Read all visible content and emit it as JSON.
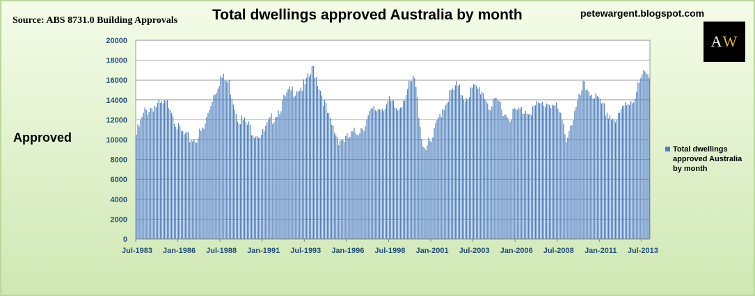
{
  "header": {
    "source": "Source: ABS 8731.0 Building Approvals",
    "title": "Total dwellings approved Australia by month",
    "blog": "petewargent.blogspot.com",
    "logo_a": "A",
    "logo_w": "W"
  },
  "colors": {
    "bar": "#4f81bd",
    "plot_bg": "#ffffff",
    "grid": "#8c8c8c",
    "axis_text": "#1f4e79"
  },
  "chart_data": {
    "type": "bar",
    "title": "Total dwellings approved Australia by month",
    "xlabel": "",
    "ylabel": "Approved",
    "ylim": [
      0,
      20000
    ],
    "yticks": [
      0,
      2000,
      4000,
      6000,
      8000,
      10000,
      12000,
      14000,
      16000,
      18000,
      20000
    ],
    "xtick_labels": [
      "Jul-1983",
      "Jan-1986",
      "Jul-1988",
      "Jan-1991",
      "Jul-1993",
      "Jan-1996",
      "Jul-1998",
      "Jan-2001",
      "Jul-2003",
      "Jan-2006",
      "Jul-2008",
      "Jan-2011",
      "Jul-2013"
    ],
    "x_start": "Jul-1983",
    "x_end": "Dec-2013",
    "legend": "Total dwellings approved Australia by month",
    "legend_position": "right",
    "grid": true,
    "series": [
      {
        "name": "Total dwellings approved Australia by month",
        "anchors": [
          [
            "Jul-1983",
            10500
          ],
          [
            "Jan-1984",
            12800
          ],
          [
            "Jul-1984",
            13400
          ],
          [
            "Jan-1985",
            13400
          ],
          [
            "Jul-1985",
            13600
          ],
          [
            "Jan-1986",
            11000
          ],
          [
            "Jul-1986",
            10100
          ],
          [
            "Jan-1987",
            10100
          ],
          [
            "Jul-1987",
            11000
          ],
          [
            "Jan-1988",
            14200
          ],
          [
            "Jul-1988",
            16300
          ],
          [
            "Jan-1989",
            15600
          ],
          [
            "Jul-1989",
            12400
          ],
          [
            "Jan-1990",
            11600
          ],
          [
            "Jul-1990",
            10800
          ],
          [
            "Jan-1991",
            10500
          ],
          [
            "Jul-1991",
            12000
          ],
          [
            "Jan-1992",
            13200
          ],
          [
            "Jul-1992",
            14600
          ],
          [
            "Jan-1993",
            15200
          ],
          [
            "Jul-1993",
            15400
          ],
          [
            "Jan-1994",
            17200
          ],
          [
            "Jul-1994",
            14600
          ],
          [
            "Jan-1995",
            11600
          ],
          [
            "Jul-1995",
            10100
          ],
          [
            "Jan-1996",
            10000
          ],
          [
            "Jul-1996",
            10700
          ],
          [
            "Jan-1997",
            11500
          ],
          [
            "Jul-1997",
            12800
          ],
          [
            "Jan-1998",
            13300
          ],
          [
            "Jul-1998",
            13700
          ],
          [
            "Jan-1999",
            13000
          ],
          [
            "Jul-1999",
            14800
          ],
          [
            "Jan-2000",
            16100
          ],
          [
            "Jul-2000",
            9400
          ],
          [
            "Jan-2001",
            9600
          ],
          [
            "Jul-2001",
            12600
          ],
          [
            "Jan-2002",
            14300
          ],
          [
            "Jul-2002",
            15300
          ],
          [
            "Jan-2003",
            14300
          ],
          [
            "Jul-2003",
            15100
          ],
          [
            "Jan-2004",
            15000
          ],
          [
            "Jul-2004",
            13200
          ],
          [
            "Jan-2005",
            13800
          ],
          [
            "Jul-2005",
            12300
          ],
          [
            "Jan-2006",
            12800
          ],
          [
            "Jul-2006",
            13000
          ],
          [
            "Jan-2007",
            13100
          ],
          [
            "Jul-2007",
            13500
          ],
          [
            "Jan-2008",
            13800
          ],
          [
            "Jul-2008",
            13000
          ],
          [
            "Jan-2009",
            10300
          ],
          [
            "Jul-2009",
            12600
          ],
          [
            "Jan-2010",
            15300
          ],
          [
            "Jul-2010",
            14800
          ],
          [
            "Jan-2011",
            13500
          ],
          [
            "Jul-2011",
            12600
          ],
          [
            "Jan-2012",
            11800
          ],
          [
            "Jul-2012",
            13600
          ],
          [
            "Jan-2013",
            14200
          ],
          [
            "Jul-2013",
            16300
          ],
          [
            "Dec-2013",
            16800
          ]
        ]
      }
    ]
  }
}
